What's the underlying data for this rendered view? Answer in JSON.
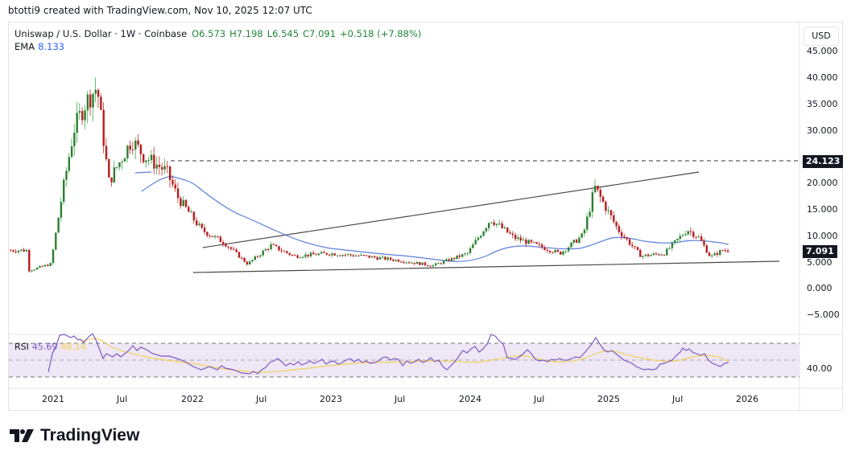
{
  "header": {
    "credit": "btotti9 created with TradingView.com, Nov 10, 2025 12:07 UTC"
  },
  "legend": {
    "symbol": "Uniswap / U.S. Dollar · 1W · Coinbase",
    "open": "O6.573",
    "high": "H7.198",
    "low": "L6.545",
    "close": "C7.091",
    "change": "+0.518 (+7.88%)",
    "ema_label": "EMA",
    "ema_value": "8.133"
  },
  "toolbar": {
    "currency_button": "USD"
  },
  "price_axis": {
    "ticks": [
      "45.000",
      "40.000",
      "35.000",
      "30.000",
      "20.000",
      "15.000",
      "10.000",
      "5.000",
      "0.000",
      "−5.000"
    ],
    "badges": {
      "level": "24.123",
      "last": "7.091"
    }
  },
  "rsi": {
    "label": "RSI",
    "value": "45.69",
    "ma_value": "48.14",
    "axis_tick": "40.00"
  },
  "time_axis": {
    "ticks": [
      "2021",
      "Jul",
      "2022",
      "Jul",
      "2023",
      "Jul",
      "2024",
      "Jul",
      "2025",
      "Jul",
      "2026"
    ]
  },
  "brand": {
    "name": "TradingView"
  },
  "colors": {
    "up": "#2e7d32",
    "down": "#b71c1c",
    "ema": "#5b7fdb",
    "rsi": "#7e57c2",
    "rsi_ma": "#f7d14a",
    "rsi_band": "#ede7f6",
    "trendline": "#4a4a4a"
  },
  "chart_data": [
    {
      "type": "candlestick",
      "title": "Uniswap / U.S. Dollar · 1W · Coinbase",
      "interval": "1W",
      "last": {
        "open": 6.573,
        "high": 7.198,
        "low": 6.545,
        "close": 7.091,
        "change": 0.518,
        "change_pct": 7.88
      },
      "ylim": [
        -7,
        47
      ],
      "yticks": [
        -5,
        0,
        5,
        10,
        15,
        20,
        25,
        30,
        35,
        40,
        45
      ],
      "xticks": [
        "2021",
        "Jul",
        "2022",
        "Jul",
        "2023",
        "Jul",
        "2024",
        "Jul",
        "2025",
        "Jul",
        "2026"
      ],
      "approx_weekly_closes": {
        "x": [
          "2020-11",
          "2021-01",
          "2021-02",
          "2021-03",
          "2021-04",
          "2021-05",
          "2021-06",
          "2021-08",
          "2021-09",
          "2021-11",
          "2021-12",
          "2022-02",
          "2022-04",
          "2022-06",
          "2022-08",
          "2022-10",
          "2023-01",
          "2023-04",
          "2023-07",
          "2023-10",
          "2024-01",
          "2024-03",
          "2024-05",
          "2024-07",
          "2024-09",
          "2024-11",
          "2024-12",
          "2025-02",
          "2025-04",
          "2025-06",
          "2025-08",
          "2025-09",
          "2025-10",
          "2025-11"
        ],
        "y": [
          3.2,
          4.5,
          18,
          30,
          35,
          38,
          20,
          28,
          25,
          22,
          17,
          11,
          8.5,
          4.5,
          8,
          6,
          6.5,
          6,
          5.2,
          4.2,
          6.5,
          13,
          9.5,
          8,
          6.5,
          10,
          19,
          11,
          6,
          6.5,
          11,
          9.5,
          5.8,
          7.091
        ]
      },
      "series": [
        {
          "name": "EMA",
          "last_value": 8.133,
          "color": "#5b7fdb"
        }
      ],
      "annotations": [
        {
          "type": "horizontal_dashed",
          "value": 24.123
        },
        {
          "type": "trendline",
          "name": "ascending resistance",
          "from": [
            "2022-05",
            7.5
          ],
          "to": [
            "2025-08",
            21.5
          ]
        },
        {
          "type": "trendline",
          "name": "ascending support",
          "from": [
            "2022-04",
            3.0
          ],
          "to": [
            "2025-12",
            5.0
          ]
        }
      ]
    },
    {
      "type": "line",
      "title": "RSI",
      "series": [
        {
          "name": "RSI",
          "last_value": 45.69,
          "color": "#7e57c2"
        },
        {
          "name": "RSI MA",
          "last_value": 48.14,
          "color": "#f7d14a"
        }
      ],
      "bands": [
        30,
        50,
        70
      ],
      "yticks": [
        40
      ]
    }
  ]
}
